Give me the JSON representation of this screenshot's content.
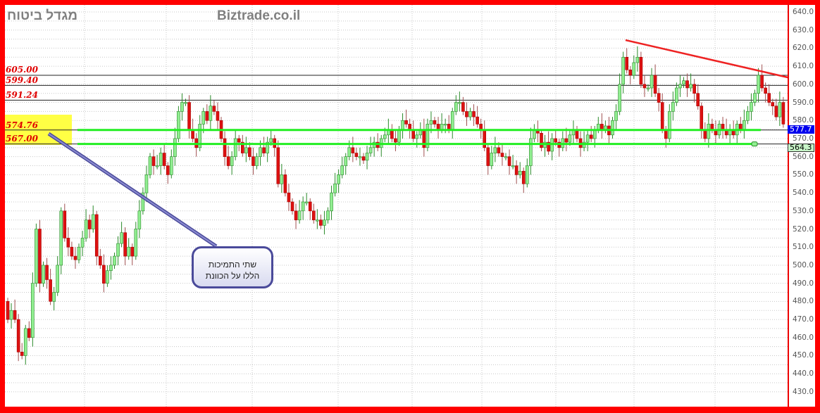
{
  "header": {
    "stock_name": "מגדל ביטוח",
    "site": "Biztrade.co.il"
  },
  "levels": {
    "l605": "605.00",
    "l599": "599.40",
    "l591": "591.24",
    "l574": "574.76",
    "l567": "567.00"
  },
  "callout": {
    "line1": "שתי התמיכות",
    "line2": "הללו על הכוונת"
  },
  "badges": {
    "last_price": "577.7",
    "marker_price": "564.3"
  },
  "colors": {
    "up": "#90ee90",
    "down": "#dd1111",
    "support": "#22ee22",
    "trend": "#ee2222",
    "frame": "#ff0000",
    "highlight": "#ffff44",
    "callout": "#4a4a9a"
  },
  "chart_data": {
    "type": "candlestick",
    "ylim": [
      425,
      643
    ],
    "y_ticks": [
      "640.0",
      "630.0",
      "620.0",
      "610.0",
      "600.0",
      "590.0",
      "580.0",
      "570.0",
      "560.0",
      "550.0",
      "540.0",
      "530.0",
      "520.0",
      "510.0",
      "500.0",
      "490.0",
      "480.0",
      "470.0",
      "460.0",
      "450.0",
      "440.0",
      "430.0"
    ],
    "horizontal_levels": [
      605,
      599.4,
      591.24,
      574.76,
      567
    ],
    "support_lines": [
      574.76,
      567
    ],
    "trendline": {
      "from_index": 174,
      "from_value": 625,
      "to_index": 222,
      "to_value": 603
    },
    "close": [
      470,
      475,
      470,
      452,
      450,
      465,
      460,
      490,
      520,
      490,
      500,
      492,
      480,
      485,
      500,
      530,
      515,
      510,
      505,
      503,
      510,
      515,
      525,
      520,
      528,
      505,
      500,
      490,
      497,
      500,
      505,
      512,
      518,
      505,
      510,
      505,
      520,
      530,
      540,
      550,
      560,
      555,
      555,
      562,
      555,
      550,
      560,
      570,
      585,
      590,
      590,
      575,
      570,
      565,
      578,
      585,
      580,
      588,
      585,
      580,
      570,
      560,
      555,
      560,
      570,
      568,
      562,
      565,
      560,
      555,
      560,
      565,
      562,
      568,
      570,
      565,
      545,
      550,
      540,
      535,
      530,
      525,
      530,
      535,
      535,
      530,
      525,
      525,
      522,
      525,
      530,
      540,
      545,
      550,
      555,
      560,
      565,
      562,
      560,
      560,
      558,
      562,
      565,
      568,
      565,
      570,
      572,
      575,
      570,
      568,
      575,
      580,
      578,
      575,
      570,
      572,
      575,
      565,
      578,
      580,
      578,
      575,
      578,
      578,
      575,
      585,
      590,
      590,
      585,
      582,
      585,
      582,
      578,
      575,
      565,
      555,
      562,
      565,
      562,
      560,
      560,
      555,
      555,
      550,
      552,
      545,
      555,
      570,
      575,
      573,
      565,
      568,
      563,
      570,
      568,
      565,
      570,
      568,
      572,
      575,
      570,
      565,
      568,
      572,
      570,
      575,
      578,
      575,
      577,
      572,
      580,
      585,
      600,
      615,
      608,
      605,
      612,
      615,
      600,
      598,
      598,
      605,
      595,
      590,
      575,
      570,
      585,
      590,
      598,
      600,
      602,
      598,
      600,
      595,
      588,
      575,
      570,
      578,
      575,
      572,
      578,
      575,
      572,
      575,
      572,
      578,
      575,
      580,
      585,
      590,
      595,
      605,
      598,
      595,
      590,
      588,
      582,
      590,
      578
    ],
    "open_first": 480
  }
}
